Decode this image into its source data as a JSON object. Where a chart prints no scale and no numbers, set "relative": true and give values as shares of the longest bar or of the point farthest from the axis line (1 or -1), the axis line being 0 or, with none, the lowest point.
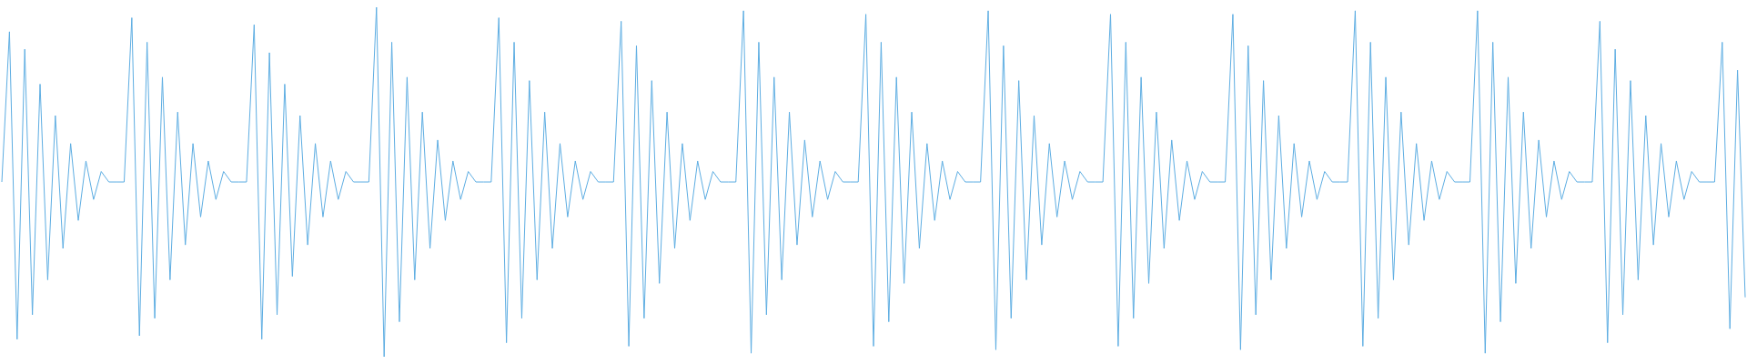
{
  "chart_data": {
    "type": "line",
    "relative": true,
    "marker": "none",
    "categories": [
      null,
      null,
      null,
      null,
      null,
      null,
      null,
      null,
      null,
      null,
      null,
      null,
      null,
      null,
      null,
      null,
      null,
      null,
      null,
      null,
      null,
      null,
      null,
      null,
      null,
      null,
      null,
      null,
      null,
      null,
      null,
      null,
      null,
      null,
      null,
      null,
      null,
      null,
      null,
      null,
      null,
      null,
      null,
      null,
      null,
      null,
      null,
      null,
      null,
      null,
      null,
      null,
      null,
      null,
      null,
      null,
      null,
      null,
      null,
      null,
      null,
      null,
      null,
      null,
      null,
      null,
      null,
      null,
      null,
      null,
      null,
      null,
      null,
      null,
      null,
      null,
      null,
      null,
      null,
      null,
      null,
      null,
      null,
      null,
      null,
      null,
      null,
      null,
      null,
      null,
      null,
      null,
      null,
      null,
      null,
      null,
      null,
      null,
      null,
      null,
      null,
      null,
      null,
      null,
      null,
      null,
      null,
      null,
      null,
      null,
      null,
      null,
      null,
      null,
      null,
      null,
      null,
      null,
      null,
      null,
      null,
      null,
      null,
      null,
      null,
      null,
      null,
      null,
      null,
      null,
      null,
      null,
      null,
      null,
      null,
      null,
      null,
      null,
      null,
      null,
      null,
      null,
      null,
      null,
      null,
      null,
      null,
      null,
      null,
      null,
      null,
      null,
      null,
      null,
      null,
      null,
      null,
      null,
      null,
      null,
      null,
      null,
      null,
      null,
      null,
      null,
      null,
      null,
      null,
      null,
      null,
      null,
      null,
      null,
      null,
      null,
      null,
      null,
      null,
      null,
      null,
      null,
      null,
      null,
      null,
      null,
      null,
      null,
      null,
      null,
      null,
      null,
      null,
      null,
      null,
      null,
      null,
      null,
      null,
      null,
      null,
      null,
      null,
      null,
      null,
      null,
      null,
      null,
      null,
      null,
      null,
      null,
      null,
      null,
      null,
      null,
      null,
      null,
      null,
      null,
      null,
      null,
      null,
      null,
      null,
      null,
      null,
      null,
      null
    ],
    "series": [
      {
        "color": "#5dade2",
        "values": [
          0.5,
          0.93,
          0.05,
          0.88,
          0.12,
          0.78,
          0.22,
          0.69,
          0.31,
          0.61,
          0.39,
          0.56,
          0.45,
          0.53,
          0.5,
          0.5,
          0.5,
          0.97,
          0.06,
          0.9,
          0.11,
          0.8,
          0.22,
          0.7,
          0.32,
          0.61,
          0.4,
          0.56,
          0.45,
          0.53,
          0.5,
          0.5,
          0.5,
          0.95,
          0.05,
          0.87,
          0.12,
          0.78,
          0.23,
          0.69,
          0.32,
          0.61,
          0.4,
          0.56,
          0.45,
          0.53,
          0.5,
          0.5,
          0.5,
          1.0,
          0.0,
          0.9,
          0.1,
          0.8,
          0.22,
          0.7,
          0.31,
          0.62,
          0.39,
          0.56,
          0.45,
          0.53,
          0.5,
          0.5,
          0.5,
          0.97,
          0.04,
          0.9,
          0.11,
          0.79,
          0.22,
          0.7,
          0.31,
          0.61,
          0.4,
          0.56,
          0.45,
          0.53,
          0.5,
          0.5,
          0.5,
          0.96,
          0.03,
          0.89,
          0.11,
          0.79,
          0.21,
          0.7,
          0.31,
          0.61,
          0.39,
          0.56,
          0.45,
          0.53,
          0.5,
          0.5,
          0.5,
          0.99,
          0.01,
          0.9,
          0.12,
          0.8,
          0.22,
          0.7,
          0.32,
          0.62,
          0.4,
          0.56,
          0.45,
          0.53,
          0.5,
          0.5,
          0.5,
          0.98,
          0.03,
          0.9,
          0.1,
          0.8,
          0.21,
          0.7,
          0.31,
          0.61,
          0.39,
          0.56,
          0.45,
          0.53,
          0.5,
          0.5,
          0.5,
          0.99,
          0.02,
          0.89,
          0.11,
          0.79,
          0.22,
          0.69,
          0.32,
          0.61,
          0.4,
          0.56,
          0.45,
          0.53,
          0.5,
          0.5,
          0.5,
          0.98,
          0.03,
          0.9,
          0.11,
          0.8,
          0.21,
          0.7,
          0.31,
          0.62,
          0.39,
          0.56,
          0.45,
          0.53,
          0.5,
          0.5,
          0.5,
          0.98,
          0.02,
          0.89,
          0.12,
          0.79,
          0.22,
          0.69,
          0.31,
          0.61,
          0.4,
          0.56,
          0.45,
          0.53,
          0.5,
          0.5,
          0.5,
          0.99,
          0.03,
          0.9,
          0.11,
          0.8,
          0.22,
          0.7,
          0.32,
          0.61,
          0.39,
          0.56,
          0.45,
          0.53,
          0.5,
          0.5,
          0.5,
          0.99,
          0.01,
          0.9,
          0.1,
          0.8,
          0.21,
          0.7,
          0.31,
          0.62,
          0.4,
          0.56,
          0.45,
          0.53,
          0.5,
          0.5,
          0.5,
          0.96,
          0.04,
          0.88,
          0.12,
          0.79,
          0.22,
          0.69,
          0.32,
          0.61,
          0.4,
          0.56,
          0.45,
          0.53,
          0.5,
          0.5,
          0.5,
          0.9,
          0.08,
          0.82,
          0.17
        ]
      }
    ]
  }
}
